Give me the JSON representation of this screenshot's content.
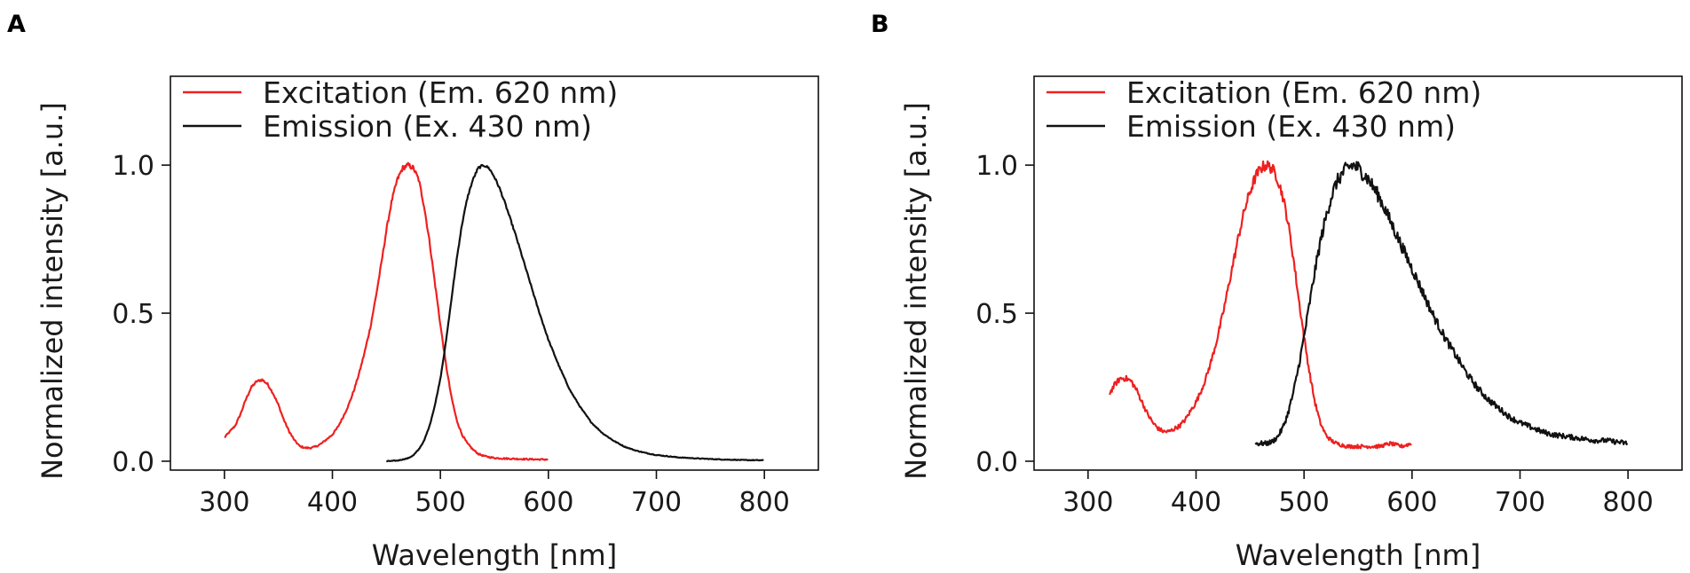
{
  "chart_data": [
    {
      "panel": "A",
      "type": "line",
      "xlabel": "Wavelength [nm]",
      "ylabel": "Normalized intensity [a.u.]",
      "xlim": [
        250,
        850
      ],
      "ylim": [
        -0.03,
        1.3
      ],
      "xticks": [
        300,
        400,
        500,
        600,
        700,
        800
      ],
      "yticks": [
        0.0,
        0.5,
        1.0
      ],
      "ytick_labels": [
        "0.0",
        "0.5",
        "1.0"
      ],
      "legend_position": "top-left",
      "series": [
        {
          "name": "Excitation (Em. 620 nm)",
          "color": "#ee2020",
          "noise": 0.006,
          "x": [
            300,
            305,
            310,
            315,
            320,
            325,
            330,
            335,
            340,
            345,
            350,
            355,
            360,
            365,
            370,
            375,
            380,
            385,
            390,
            395,
            400,
            405,
            410,
            415,
            420,
            425,
            430,
            435,
            440,
            445,
            450,
            455,
            460,
            465,
            470,
            475,
            480,
            485,
            490,
            495,
            500,
            505,
            510,
            515,
            520,
            525,
            530,
            535,
            540,
            545,
            550,
            560,
            570,
            580,
            590,
            600
          ],
          "y": [
            0.08,
            0.1,
            0.12,
            0.16,
            0.21,
            0.25,
            0.27,
            0.275,
            0.26,
            0.23,
            0.19,
            0.14,
            0.1,
            0.07,
            0.05,
            0.045,
            0.045,
            0.05,
            0.06,
            0.075,
            0.09,
            0.115,
            0.15,
            0.19,
            0.24,
            0.3,
            0.37,
            0.45,
            0.55,
            0.66,
            0.78,
            0.88,
            0.95,
            0.99,
            1.0,
            0.99,
            0.95,
            0.86,
            0.74,
            0.6,
            0.46,
            0.33,
            0.22,
            0.14,
            0.09,
            0.06,
            0.04,
            0.025,
            0.018,
            0.014,
            0.011,
            0.009,
            0.008,
            0.007,
            0.006,
            0.006
          ]
        },
        {
          "name": "Emission (Ex. 430 nm)",
          "color": "#111111",
          "noise": 0.003,
          "x": [
            450,
            460,
            470,
            475,
            480,
            485,
            490,
            495,
            500,
            505,
            510,
            515,
            520,
            525,
            530,
            535,
            540,
            545,
            550,
            555,
            560,
            570,
            580,
            590,
            600,
            610,
            620,
            630,
            640,
            650,
            660,
            670,
            680,
            690,
            700,
            720,
            740,
            760,
            780,
            800
          ],
          "y": [
            0.0,
            0.002,
            0.01,
            0.02,
            0.04,
            0.07,
            0.12,
            0.19,
            0.28,
            0.4,
            0.54,
            0.68,
            0.8,
            0.89,
            0.95,
            0.99,
            1.0,
            0.99,
            0.96,
            0.92,
            0.87,
            0.76,
            0.64,
            0.52,
            0.41,
            0.32,
            0.24,
            0.18,
            0.13,
            0.095,
            0.07,
            0.05,
            0.037,
            0.028,
            0.021,
            0.013,
            0.009,
            0.006,
            0.004,
            0.003
          ]
        }
      ]
    },
    {
      "panel": "B",
      "type": "line",
      "xlabel": "Wavelength [nm]",
      "ylabel": "Normalized intensity [a.u.]",
      "xlim": [
        250,
        850
      ],
      "ylim": [
        -0.03,
        1.3
      ],
      "xticks": [
        300,
        400,
        500,
        600,
        700,
        800
      ],
      "yticks": [
        0.0,
        0.5,
        1.0
      ],
      "ytick_labels": [
        "0.0",
        "0.5",
        "1.0"
      ],
      "legend_position": "top-left",
      "series": [
        {
          "name": "Excitation (Em. 620 nm)",
          "color": "#ee2020",
          "noise": 0.014,
          "x": [
            320,
            325,
            330,
            335,
            340,
            345,
            350,
            355,
            360,
            365,
            370,
            375,
            380,
            385,
            390,
            395,
            400,
            405,
            410,
            415,
            420,
            425,
            430,
            435,
            440,
            445,
            450,
            455,
            460,
            465,
            470,
            475,
            480,
            485,
            490,
            495,
            500,
            505,
            510,
            515,
            520,
            525,
            530,
            540,
            550,
            560,
            570,
            580,
            590,
            600
          ],
          "y": [
            0.23,
            0.26,
            0.28,
            0.28,
            0.27,
            0.24,
            0.2,
            0.16,
            0.13,
            0.11,
            0.1,
            0.1,
            0.11,
            0.12,
            0.14,
            0.17,
            0.2,
            0.24,
            0.29,
            0.35,
            0.42,
            0.5,
            0.59,
            0.68,
            0.77,
            0.85,
            0.91,
            0.96,
            0.99,
            1.0,
            0.99,
            0.96,
            0.9,
            0.81,
            0.69,
            0.55,
            0.42,
            0.3,
            0.2,
            0.13,
            0.09,
            0.07,
            0.06,
            0.05,
            0.05,
            0.05,
            0.05,
            0.06,
            0.05,
            0.06
          ]
        },
        {
          "name": "Emission (Ex. 430 nm)",
          "color": "#111111",
          "noise": 0.018,
          "x": [
            455,
            460,
            465,
            470,
            475,
            480,
            485,
            490,
            495,
            500,
            505,
            510,
            515,
            520,
            525,
            530,
            535,
            540,
            545,
            550,
            555,
            560,
            570,
            580,
            590,
            600,
            610,
            620,
            630,
            640,
            650,
            660,
            670,
            680,
            690,
            700,
            710,
            720,
            730,
            740,
            750,
            760,
            770,
            780,
            790,
            800
          ],
          "y": [
            0.06,
            0.06,
            0.06,
            0.065,
            0.08,
            0.11,
            0.16,
            0.23,
            0.32,
            0.42,
            0.53,
            0.64,
            0.74,
            0.82,
            0.89,
            0.94,
            0.97,
            0.99,
            1.0,
            0.99,
            0.97,
            0.95,
            0.89,
            0.81,
            0.73,
            0.65,
            0.57,
            0.49,
            0.42,
            0.36,
            0.3,
            0.25,
            0.21,
            0.18,
            0.15,
            0.13,
            0.115,
            0.1,
            0.09,
            0.085,
            0.08,
            0.075,
            0.07,
            0.07,
            0.065,
            0.06
          ]
        }
      ]
    }
  ]
}
